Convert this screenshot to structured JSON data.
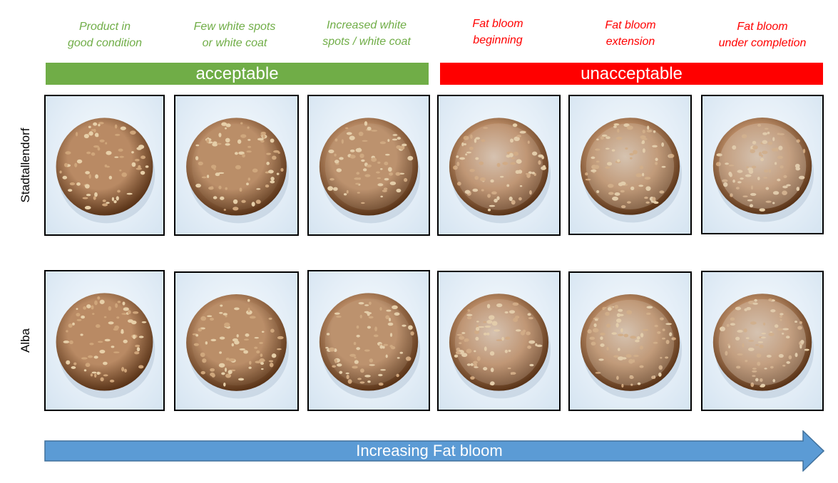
{
  "stages": [
    {
      "line1": "Product in",
      "line2": "good condition",
      "tone": "acceptable"
    },
    {
      "line1": "Few white spots",
      "line2": "or white coat",
      "tone": "acceptable"
    },
    {
      "line1": "Increased white",
      "line2": "spots / white coat",
      "tone": "acceptable"
    },
    {
      "line1": "Fat bloom",
      "line2": "beginning",
      "tone": "unacceptable"
    },
    {
      "line1": "Fat bloom",
      "line2": "extension",
      "tone": "unacceptable"
    },
    {
      "line1": "Fat bloom",
      "line2": "under completion",
      "tone": "unacceptable"
    }
  ],
  "bands": {
    "acceptable": "acceptable",
    "unacceptable": "unacceptable"
  },
  "rows": [
    {
      "label": "Stadtallendorf",
      "bloom_levels": [
        0.0,
        0.15,
        0.3,
        0.5,
        0.65,
        0.85
      ]
    },
    {
      "label": "Alba",
      "bloom_levels": [
        0.0,
        0.15,
        0.3,
        0.5,
        0.65,
        0.85
      ]
    }
  ],
  "arrow": {
    "label": "Increasing Fat bloom"
  },
  "colors": {
    "acceptable": "#70ad47",
    "unacceptable": "#ff0000",
    "arrow": "#5b9bd5",
    "chocolate_dark": "#5a3418",
    "chocolate_light": "#b98a64",
    "bloom": "#d6c3b1"
  }
}
